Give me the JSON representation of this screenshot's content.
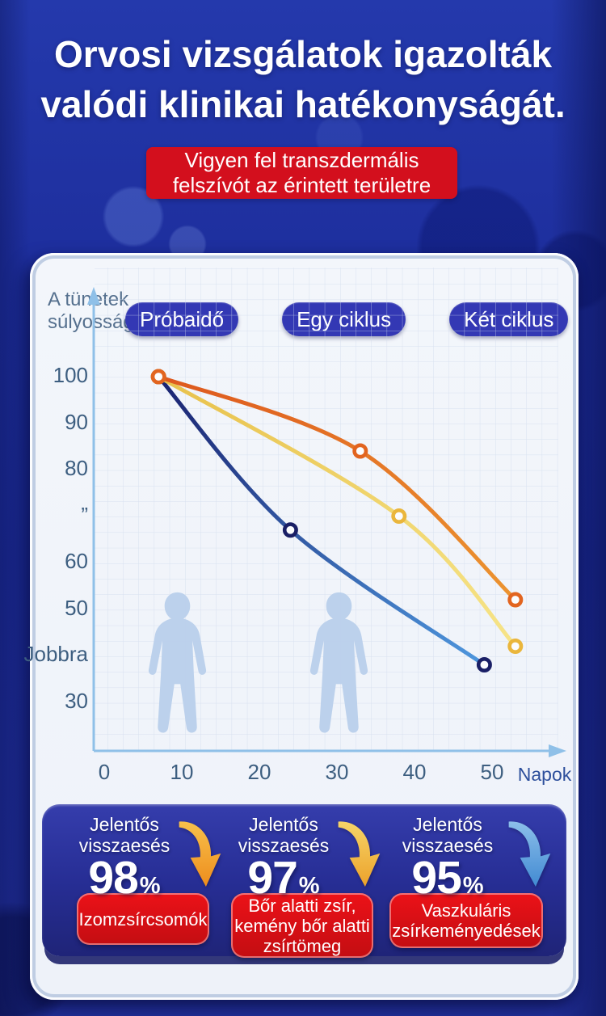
{
  "title": {
    "line1": "Orvosi vizsgálatok igazolták",
    "line2": "valódi klinikai hatékonyságát."
  },
  "badge": {
    "line1": "Vigyen fel transzdermális",
    "line2": "felszívót az érintett területre"
  },
  "chart_data": {
    "type": "line",
    "title": "",
    "ylabel": "A tünetek súlyossága",
    "ylabel_lines": [
      "A tünetek",
      "súlyossága"
    ],
    "xlabel": "Napok",
    "legend": [
      "Próbaidő",
      "Egy ciklus",
      "Két ciklus"
    ],
    "legend_position": "top",
    "grid": true,
    "xlim": [
      0,
      58
    ],
    "ylim": [
      25,
      108
    ],
    "x_ticks": [
      {
        "v": 0,
        "label": "0"
      },
      {
        "v": 10,
        "label": "10"
      },
      {
        "v": 20,
        "label": "20"
      },
      {
        "v": 30,
        "label": "30"
      },
      {
        "v": 40,
        "label": "40"
      },
      {
        "v": 50,
        "label": "50"
      }
    ],
    "y_ticks": [
      {
        "v": 100,
        "label": "100"
      },
      {
        "v": 90,
        "label": "90"
      },
      {
        "v": 80,
        "label": "80"
      },
      {
        "v": 70,
        "label": "”"
      },
      {
        "v": 60,
        "label": "60"
      },
      {
        "v": 50,
        "label": "50"
      },
      {
        "v": 40,
        "label": "Jobbra"
      },
      {
        "v": 30,
        "label": "30"
      }
    ],
    "series": [
      {
        "name": "Próbaidő",
        "x": [
          7,
          33,
          53
        ],
        "values": [
          100,
          84,
          52
        ],
        "color": "#dd571d",
        "color_end": "#ec9430",
        "marker_color": "#e2641f"
      },
      {
        "name": "Egy ciklus",
        "x": [
          7,
          38,
          53
        ],
        "values": [
          100,
          70,
          42
        ],
        "color": "#e8c14b",
        "color_end": "#f6e488",
        "marker_color": "#eab63c"
      },
      {
        "name": "Két ciklus",
        "x": [
          7,
          24,
          49
        ],
        "values": [
          100,
          67,
          38
        ],
        "color": "#1a2270",
        "color_end": "#4e97de",
        "marker_color": "#1a1f66"
      }
    ]
  },
  "stats": [
    {
      "label_line1": "Jelentős",
      "label_line2": "visszaesés",
      "value": "98",
      "unit": "%",
      "arrow": "orange-down-arrow",
      "arrow_colors": [
        "#f7c04b",
        "#ee8d1d"
      ],
      "box_lines": [
        "Izomzsírcsomók"
      ]
    },
    {
      "label_line1": "Jelentős",
      "label_line2": "visszaesés",
      "value": "97",
      "unit": "%",
      "arrow": "gold-down-arrow",
      "arrow_colors": [
        "#f6d468",
        "#eca22b"
      ],
      "box_lines": [
        "Bőr alatti zsír,",
        "kemény bőr alatti",
        "zsírtömeg"
      ]
    },
    {
      "label_line1": "Jelentős",
      "label_line2": "visszaesés",
      "value": "95",
      "unit": "%",
      "arrow": "blue-down-arrow",
      "arrow_colors": [
        "#8cbfea",
        "#418ad2"
      ],
      "box_lines": [
        "Vaszkuláris",
        "zsírkeményedések"
      ]
    }
  ],
  "colors": {
    "background": "#1e2f9e",
    "panel_bg": "#f2f5fa",
    "badge_red": "#d30f1d",
    "box_red": "#d90f15",
    "stats_panel": "#272e95",
    "legend_pill": "#3338b4",
    "axis": "#8fc0e8",
    "tick_text": "#3d5e80",
    "silhouette": "#bad0ec"
  }
}
